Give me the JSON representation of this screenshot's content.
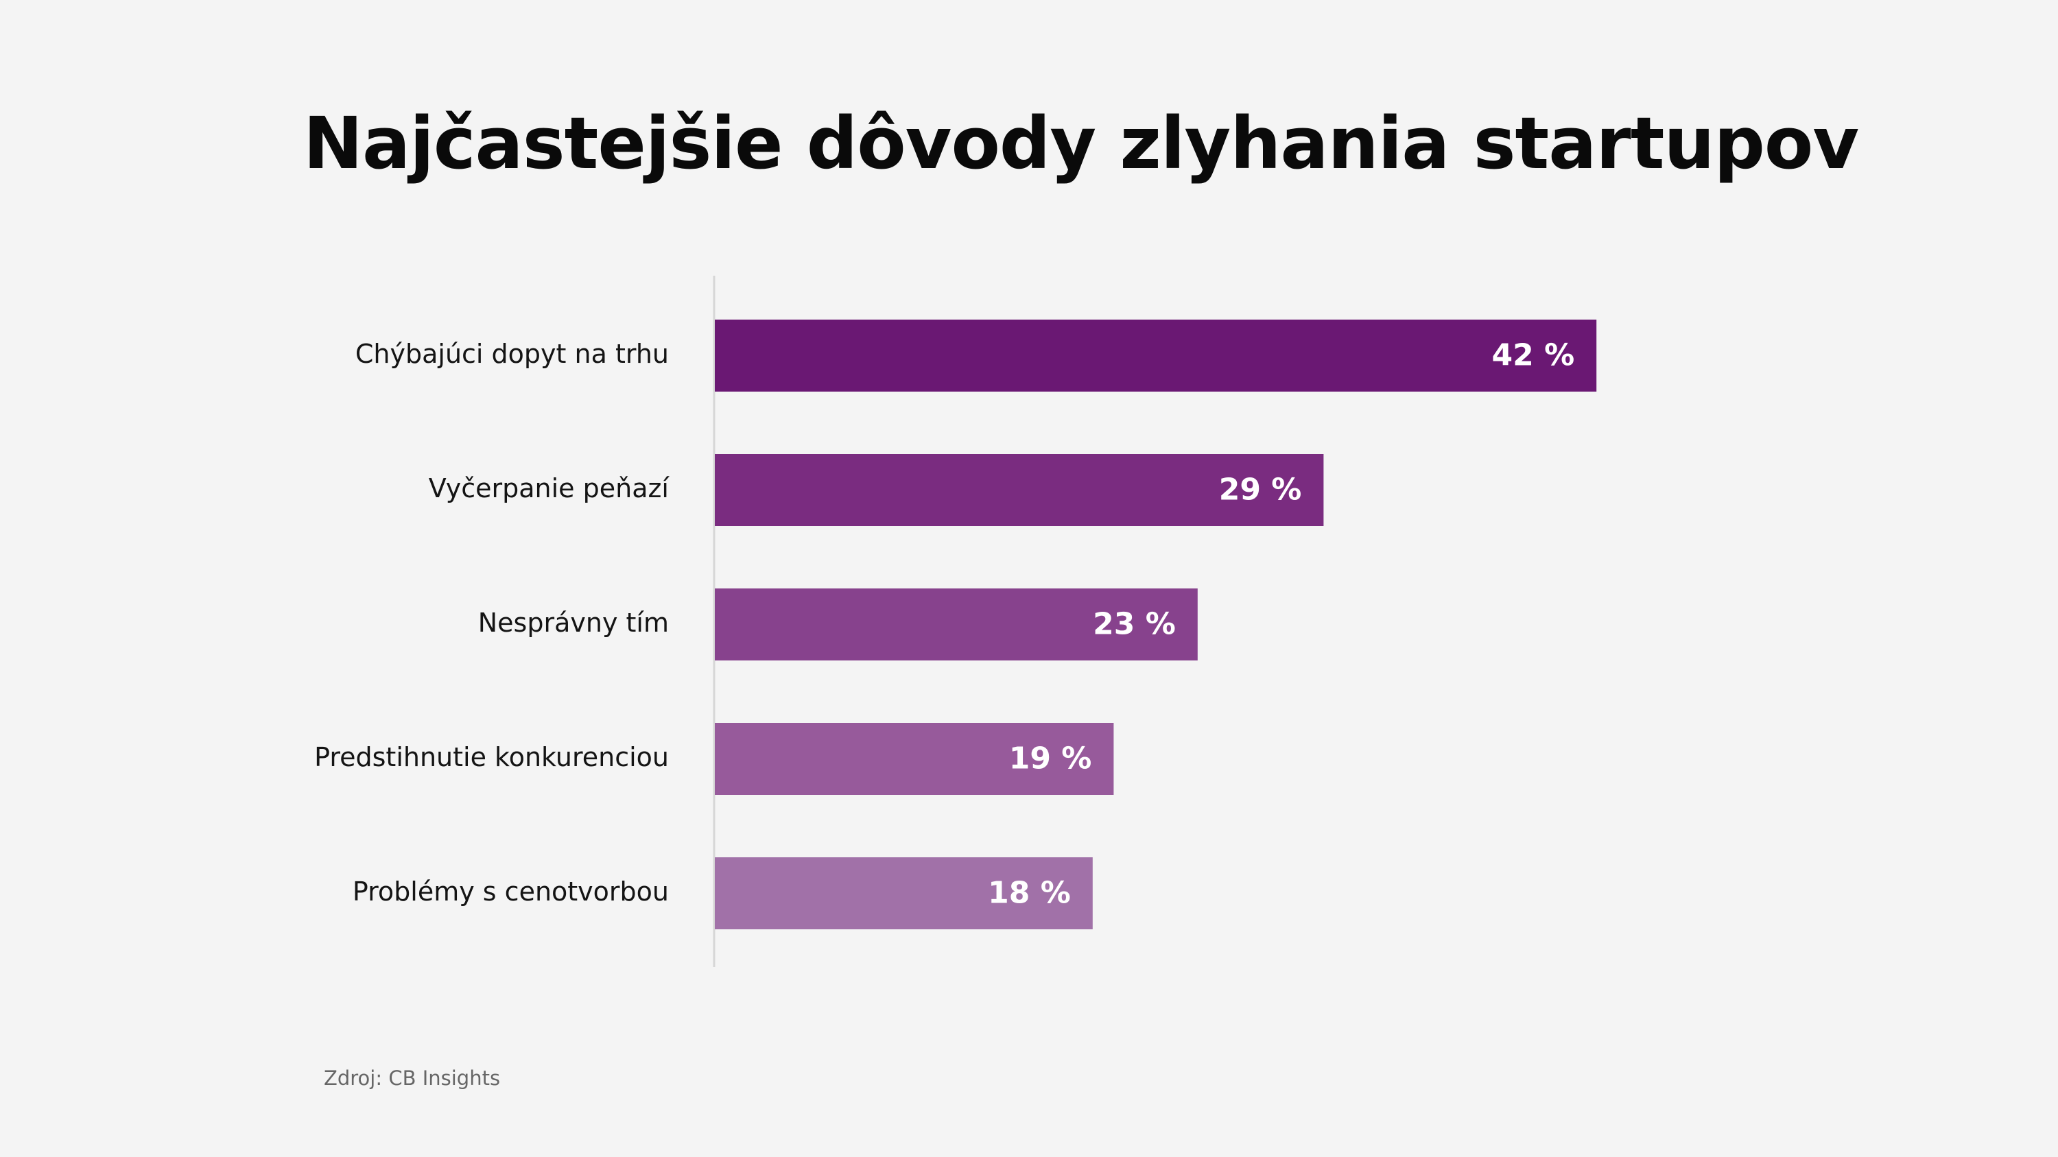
{
  "chart_data": {
    "type": "bar",
    "orientation": "horizontal",
    "title": "Najčastejšie dôvody zlyhania startupov",
    "categories": [
      "Chýbajúci dopyt na trhu",
      "Vyčerpanie peňazí",
      "Nesprávny tím",
      "Predstihnutie konkurenciou",
      "Problémy s cenotvorbou"
    ],
    "values": [
      42,
      29,
      23,
      19,
      18
    ],
    "value_labels": [
      "42 %",
      "29 %",
      "23 %",
      "19 %",
      "18 %"
    ],
    "bar_colors": [
      "#6a1873",
      "#7a2c80",
      "#87428d",
      "#975a9b",
      "#a171a8"
    ],
    "xlim": [
      0,
      60
    ],
    "grid": false,
    "legend": "none",
    "source": "Zdroj: CB Insights"
  }
}
